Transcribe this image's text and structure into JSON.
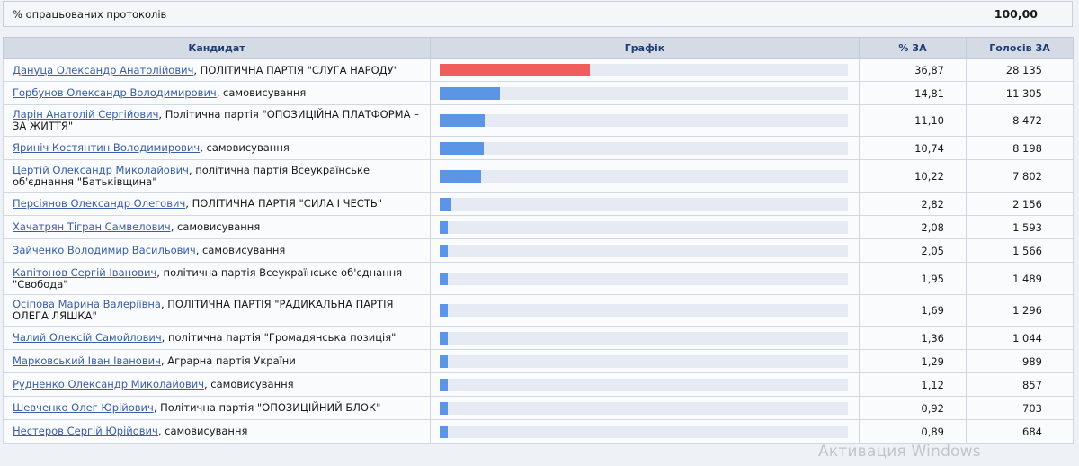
{
  "summary": {
    "label": "% опрацьованих протоколів",
    "value": "100,00"
  },
  "table": {
    "headers": {
      "candidate": "Кандидат",
      "graph": "Графік",
      "percent": "% ЗА",
      "votes": "Голосів ЗА"
    },
    "rows": [
      {
        "name": "Дануца Олександр Анатолійович",
        "party": ", ПОЛІТИЧНА ПАРТІЯ \"СЛУГА НАРОДУ\"",
        "percent": "36,87",
        "votes": "28 135",
        "share": 36.87,
        "lead": true
      },
      {
        "name": "Горбунов Олександр Володимирович",
        "party": ", самовисування",
        "percent": "14,81",
        "votes": "11 305",
        "share": 14.81,
        "lead": false
      },
      {
        "name": "Ларін Анатолій Сергійович",
        "party": ", Політична партія \"ОПОЗИЦІЙНА ПЛАТФОРМА – ЗА ЖИТТЯ\"",
        "percent": "11,10",
        "votes": "8 472",
        "share": 11.1,
        "lead": false
      },
      {
        "name": "Яриніч Костянтин Володимирович",
        "party": ", самовисування",
        "percent": "10,74",
        "votes": "8 198",
        "share": 10.74,
        "lead": false
      },
      {
        "name": "Цертій Олександр Миколайович",
        "party": ", політична партія Всеукраїнське об'єднання \"Батьківщина\"",
        "percent": "10,22",
        "votes": "7 802",
        "share": 10.22,
        "lead": false
      },
      {
        "name": "Персіянов Олександр Олегович",
        "party": ", ПОЛІТИЧНА ПАРТІЯ \"СИЛА І ЧЕСТЬ\"",
        "percent": "2,82",
        "votes": "2 156",
        "share": 2.82,
        "lead": false
      },
      {
        "name": "Хачатрян Тігран Самвелович",
        "party": ", самовисування",
        "percent": "2,08",
        "votes": "1 593",
        "share": 2.08,
        "lead": false
      },
      {
        "name": "Зайченко Володимир Васильович",
        "party": ", самовисування",
        "percent": "2,05",
        "votes": "1 566",
        "share": 2.05,
        "lead": false
      },
      {
        "name": "Капітонов Сергій Іванович",
        "party": ", політична партія Всеукраїнське об'єднання \"Свобода\"",
        "percent": "1,95",
        "votes": "1 489",
        "share": 1.95,
        "lead": false
      },
      {
        "name": "Осіпова Марина Валеріївна",
        "party": ", ПОЛІТИЧНА ПАРТІЯ \"РАДИКАЛЬНА ПАРТІЯ ОЛЕГА ЛЯШКА\"",
        "percent": "1,69",
        "votes": "1 296",
        "share": 1.69,
        "lead": false
      },
      {
        "name": "Чалий Олексій Самойлович",
        "party": ", політична партія \"Громадянська позиція\"",
        "percent": "1,36",
        "votes": "1 044",
        "share": 1.36,
        "lead": false
      },
      {
        "name": "Марковський Іван Іванович",
        "party": ", Аграрна партія України",
        "percent": "1,29",
        "votes": "989",
        "share": 1.29,
        "lead": false
      },
      {
        "name": "Рудненко Олександр Миколайович",
        "party": ", самовисування",
        "percent": "1,12",
        "votes": "857",
        "share": 1.12,
        "lead": false
      },
      {
        "name": "Шевченко Олег Юрійович",
        "party": ", Політична партія \"ОПОЗИЦІЙНИЙ БЛОК\"",
        "percent": "0,92",
        "votes": "703",
        "share": 0.92,
        "lead": false
      },
      {
        "name": "Нестеров Сергій Юрійович",
        "party": ", самовисування",
        "percent": "0,89",
        "votes": "684",
        "share": 0.89,
        "lead": false
      }
    ]
  },
  "colors": {
    "lead_bar": "#ef5d5d",
    "bar": "#5c94e6",
    "track": "#e6ebf3",
    "link": "#3a5ea7"
  },
  "watermark": "Активация Windows"
}
